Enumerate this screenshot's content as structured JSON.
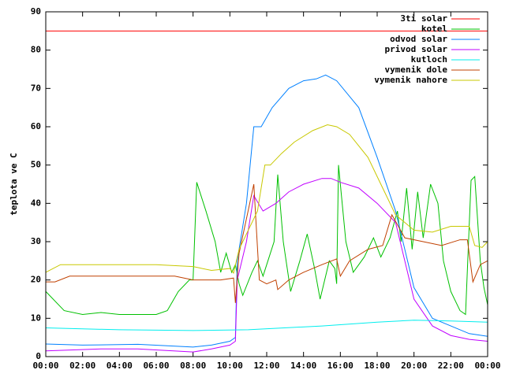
{
  "chart_data": {
    "type": "line",
    "y_label": "teplota ve C",
    "xlim": [
      0,
      24
    ],
    "xticks": [
      {
        "value": 0,
        "label": "00:00"
      },
      {
        "value": 2,
        "label": "02:00"
      },
      {
        "value": 4,
        "label": "04:00"
      },
      {
        "value": 6,
        "label": "06:00"
      },
      {
        "value": 8,
        "label": "08:00"
      },
      {
        "value": 10,
        "label": "10:00"
      },
      {
        "value": 12,
        "label": "12:00"
      },
      {
        "value": 14,
        "label": "14:00"
      },
      {
        "value": 16,
        "label": "16:00"
      },
      {
        "value": 18,
        "label": "18:00"
      },
      {
        "value": 20,
        "label": "20:00"
      },
      {
        "value": 22,
        "label": "22:00"
      },
      {
        "value": 24,
        "label": "00:00"
      }
    ],
    "ylim": [
      0,
      90
    ],
    "yticks": [
      0,
      10,
      20,
      30,
      40,
      50,
      60,
      70,
      80,
      90
    ],
    "legend": "top-right",
    "series": [
      {
        "name": "3ti solar",
        "color": "#ff0000",
        "x": [
          0,
          24
        ],
        "values": [
          85,
          85
        ]
      },
      {
        "name": "kotel",
        "color": "#00c000",
        "x": [
          0,
          1,
          2,
          3,
          4,
          5,
          6,
          6.6,
          7.2,
          7.8,
          8,
          8.2,
          8.7,
          9.2,
          9.5,
          9.8,
          10.1,
          10.3,
          10.5,
          10.7,
          11.2,
          11.5,
          11.8,
          12,
          12.4,
          12.6,
          12.9,
          13.3,
          13.8,
          14.2,
          14.6,
          14.9,
          15.4,
          15.7,
          15.8,
          15.9,
          16.3,
          16.7,
          17.3,
          17.8,
          18.2,
          18.7,
          19.1,
          19.3,
          19.6,
          19.9,
          20.2,
          20.5,
          20.9,
          21.3,
          21.6,
          22,
          22.5,
          22.8,
          23.1,
          23.3,
          23.6,
          23.8,
          24
        ],
        "values": [
          17,
          12,
          11,
          11.5,
          11,
          11,
          11,
          12,
          17,
          20,
          20,
          45.5,
          38,
          30,
          22,
          27,
          22,
          24,
          19,
          16,
          22,
          25,
          21,
          24,
          30,
          47.5,
          30,
          17,
          25,
          32,
          23,
          15,
          25,
          23,
          19,
          50,
          30,
          22,
          26,
          31,
          26,
          31,
          38,
          30,
          44,
          28,
          43,
          31,
          45,
          40,
          25,
          17,
          12,
          11,
          46,
          47,
          25,
          18,
          13.5
        ]
      },
      {
        "name": "odvod solar",
        "color": "#0080ff",
        "x": [
          0,
          2,
          5,
          8,
          9,
          10,
          10.3,
          10.4,
          10.9,
          11.3,
          11.7,
          12.3,
          13.2,
          14,
          14.7,
          15.2,
          15.8,
          17,
          18,
          19,
          20,
          21,
          22,
          23,
          24
        ],
        "values": [
          3.3,
          3,
          3.2,
          2.5,
          3,
          4,
          5,
          25,
          40,
          60,
          60,
          65,
          70,
          72,
          72.5,
          73.5,
          72,
          65,
          52,
          38,
          18,
          10,
          8,
          6,
          5.3
        ]
      },
      {
        "name": "privod solar",
        "color": "#c000ff",
        "x": [
          0,
          3,
          5,
          8,
          9,
          10,
          10.3,
          10.4,
          10.9,
          11.3,
          11.8,
          12.5,
          13.2,
          14,
          15,
          15.5,
          16,
          17,
          18,
          19,
          20,
          21,
          22,
          23,
          24
        ],
        "values": [
          1.5,
          2,
          2,
          1.2,
          2,
          3,
          4,
          20,
          30,
          42,
          38,
          40,
          43,
          45,
          46.5,
          46.5,
          45.5,
          44,
          40,
          35,
          15,
          8,
          5.5,
          4.5,
          4
        ]
      },
      {
        "name": "kutloch",
        "color": "#00eeee",
        "x": [
          0,
          4,
          8,
          11,
          15,
          18,
          20,
          22,
          24
        ],
        "values": [
          7.5,
          7,
          6.8,
          7,
          8,
          9,
          9.5,
          9.3,
          9
        ]
      },
      {
        "name": "vymenik dole",
        "color": "#c04000",
        "x": [
          0,
          0.5,
          1.3,
          7,
          8,
          9.5,
          10.2,
          10.3,
          10.5,
          11.3,
          11.6,
          12,
          12.5,
          12.6,
          13.2,
          14,
          15,
          15.8,
          16,
          16.5,
          17.5,
          18.3,
          18.8,
          19.5,
          20.5,
          21.5,
          22.5,
          22.9,
          23.2,
          23.6,
          24
        ],
        "values": [
          19.5,
          19.5,
          21,
          21,
          20,
          20,
          20.5,
          14,
          27,
          45,
          20,
          19,
          20,
          17.5,
          20,
          22,
          24,
          25.5,
          21,
          25,
          28,
          29,
          37,
          31,
          30,
          29,
          30.5,
          30.5,
          19.5,
          24,
          25
        ]
      },
      {
        "name": "vymenik nahore",
        "color": "#c8c800",
        "x": [
          0,
          0.8,
          6,
          8,
          9,
          10,
          10.2,
          10.5,
          11.5,
          11.9,
          12.2,
          12.8,
          13.5,
          14.5,
          15.3,
          15.8,
          16.5,
          17.5,
          18.3,
          19,
          19.5,
          20,
          21,
          22,
          23,
          23.3,
          23.7,
          24
        ],
        "values": [
          22,
          24,
          24,
          23.5,
          22.5,
          23,
          21.8,
          28,
          38,
          50,
          50,
          53,
          56,
          59,
          60.5,
          60,
          58,
          52,
          44,
          37,
          35,
          33,
          32.5,
          34,
          34,
          29,
          28.5,
          30
        ]
      }
    ]
  }
}
